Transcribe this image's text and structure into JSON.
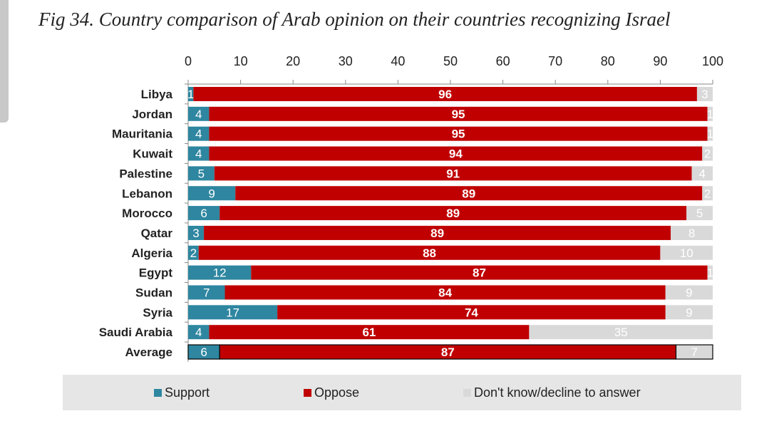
{
  "title": "Fig 34. Country comparison of Arab opinion on their countries recognizing Israel",
  "chart_data": {
    "type": "bar",
    "orientation": "horizontal",
    "stacked": true,
    "title": "Fig 34. Country comparison of Arab opinion on their countries recognizing Israel",
    "xlim": [
      0,
      100
    ],
    "xticks": [
      0,
      10,
      20,
      30,
      40,
      50,
      60,
      70,
      80,
      90,
      100
    ],
    "legend_position": "bottom",
    "categories": [
      "Libya",
      "Jordan",
      "Mauritania",
      "Kuwait",
      "Palestine",
      "Lebanon",
      "Morocco",
      "Qatar",
      "Algeria",
      "Egypt",
      "Sudan",
      "Syria",
      "Saudi Arabia",
      "Average"
    ],
    "series": [
      {
        "name": "Support",
        "color": "#2e86a0",
        "values": [
          1,
          4,
          4,
          4,
          5,
          9,
          6,
          3,
          2,
          12,
          7,
          17,
          4,
          6
        ]
      },
      {
        "name": "Oppose",
        "color": "#c00000",
        "values": [
          96,
          95,
          95,
          94,
          91,
          89,
          89,
          89,
          88,
          87,
          84,
          74,
          61,
          87
        ]
      },
      {
        "name": "Don't know/decline to answer",
        "color": "#d9d9d9",
        "values": [
          3,
          1,
          1,
          2,
          4,
          2,
          5,
          8,
          10,
          1,
          9,
          9,
          35,
          7
        ]
      }
    ]
  }
}
